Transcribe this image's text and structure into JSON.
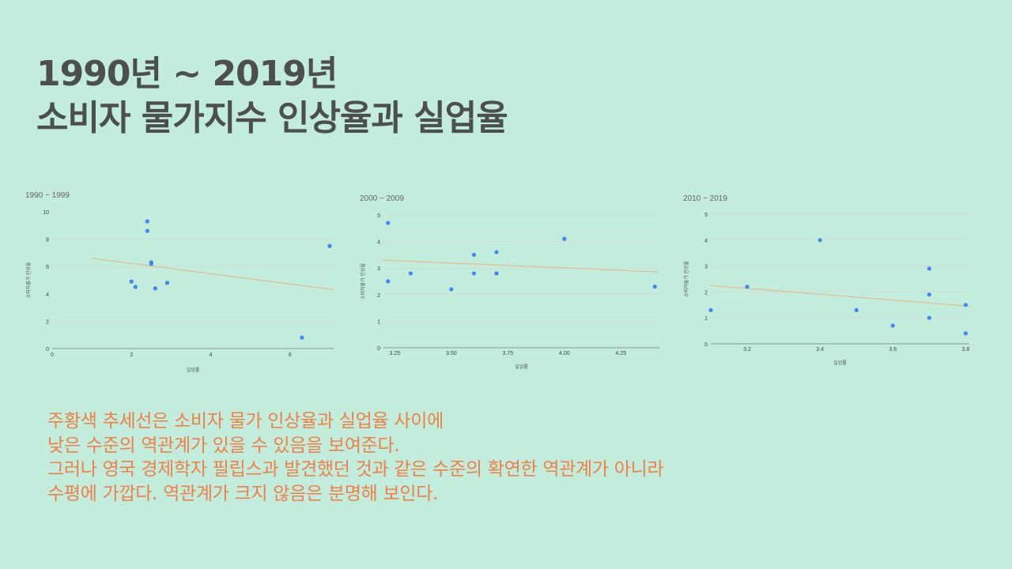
{
  "title": {
    "line1": "1990년 ~ 2019년",
    "line2": "소비자 물가지수 인상율과 실업율"
  },
  "colors": {
    "background": "#c2ecdb",
    "point": "#4285f4",
    "trendline": "#f0b27a",
    "gridline": "#d3dcd7",
    "baseline": "#8a9a92",
    "caption": "#ef8048",
    "title": "#4d4f4e"
  },
  "chart_data": [
    {
      "type": "scatter",
      "title": "1990 ~ 1999",
      "xlabel": "실업률",
      "ylabel": "소비자물가 인상율",
      "xlim": [
        0,
        7.1
      ],
      "ylim": [
        0,
        10
      ],
      "xticks": [
        0,
        2,
        4,
        6
      ],
      "xtick_labels": [
        "0",
        "2",
        "4",
        "6"
      ],
      "yticks": [
        0,
        2,
        4,
        6,
        8,
        10
      ],
      "ytick_labels": [
        "0",
        "2",
        "4",
        "6",
        "8",
        "10"
      ],
      "grid": true,
      "points": [
        {
          "x": 2.0,
          "y": 4.9
        },
        {
          "x": 2.1,
          "y": 4.5
        },
        {
          "x": 2.4,
          "y": 9.3
        },
        {
          "x": 2.4,
          "y": 8.6
        },
        {
          "x": 2.5,
          "y": 6.3
        },
        {
          "x": 2.5,
          "y": 6.2
        },
        {
          "x": 2.6,
          "y": 4.4
        },
        {
          "x": 2.9,
          "y": 4.8
        },
        {
          "x": 6.3,
          "y": 0.8
        },
        {
          "x": 7.0,
          "y": 7.5
        }
      ],
      "trendline": [
        {
          "x": 1.0,
          "y": 6.6
        },
        {
          "x": 7.1,
          "y": 4.3
        }
      ]
    },
    {
      "type": "scatter",
      "title": "2000 ~ 2009",
      "xlabel": "실업률",
      "ylabel": "소비자물가 인상율",
      "xlim": [
        3.2,
        4.42
      ],
      "ylim": [
        0,
        5
      ],
      "xticks": [
        3.25,
        3.5,
        3.75,
        4.0,
        4.25
      ],
      "xtick_labels": [
        "3.25",
        "3.50",
        "3.75",
        "4.00",
        "4.25"
      ],
      "yticks": [
        0,
        1,
        2,
        3,
        4,
        5
      ],
      "ytick_labels": [
        "0",
        "1",
        "2",
        "3",
        "4",
        "5"
      ],
      "grid": true,
      "points": [
        {
          "x": 3.22,
          "y": 4.7
        },
        {
          "x": 3.22,
          "y": 2.5
        },
        {
          "x": 3.32,
          "y": 2.8
        },
        {
          "x": 3.5,
          "y": 2.2
        },
        {
          "x": 3.6,
          "y": 3.5
        },
        {
          "x": 3.6,
          "y": 2.8
        },
        {
          "x": 3.7,
          "y": 3.6
        },
        {
          "x": 3.7,
          "y": 2.8
        },
        {
          "x": 4.0,
          "y": 4.1
        },
        {
          "x": 4.4,
          "y": 2.3
        }
      ],
      "trendline": [
        {
          "x": 3.2,
          "y": 3.3
        },
        {
          "x": 4.42,
          "y": 2.85
        }
      ]
    },
    {
      "type": "scatter",
      "title": "2010 ~ 2019",
      "xlabel": "실업률",
      "ylabel": "소비자물가 인상율",
      "xlim": [
        3.1,
        3.81
      ],
      "ylim": [
        0,
        5
      ],
      "xticks": [
        3.2,
        3.4,
        3.6,
        3.8
      ],
      "xtick_labels": [
        "3.2",
        "3.4",
        "3.6",
        "3.8"
      ],
      "yticks": [
        0,
        1,
        2,
        3,
        4,
        5
      ],
      "ytick_labels": [
        "0",
        "1",
        "2",
        "3",
        "4",
        "5"
      ],
      "grid": true,
      "points": [
        {
          "x": 3.1,
          "y": 1.3
        },
        {
          "x": 3.2,
          "y": 2.2
        },
        {
          "x": 3.4,
          "y": 4.0
        },
        {
          "x": 3.5,
          "y": 1.3
        },
        {
          "x": 3.6,
          "y": 0.7
        },
        {
          "x": 3.7,
          "y": 2.9
        },
        {
          "x": 3.7,
          "y": 1.9
        },
        {
          "x": 3.7,
          "y": 1.0
        },
        {
          "x": 3.8,
          "y": 1.5
        },
        {
          "x": 3.8,
          "y": 0.4
        }
      ],
      "trendline": [
        {
          "x": 3.1,
          "y": 2.25
        },
        {
          "x": 3.81,
          "y": 1.45
        }
      ]
    }
  ],
  "caption": {
    "line1": "주황색 추세선은 소비자 물가 인상율과 실업율 사이에",
    "line2": "낮은 수준의 역관계가 있을 수 있음을 보여준다.",
    "line3": "그러나 영국 경제학자 필립스과 발견했던 것과 같은 수준의 확연한 역관계가 아니라",
    "line4": "수평에 가깝다.  역관계가 크지 않음은 분명해 보인다."
  }
}
